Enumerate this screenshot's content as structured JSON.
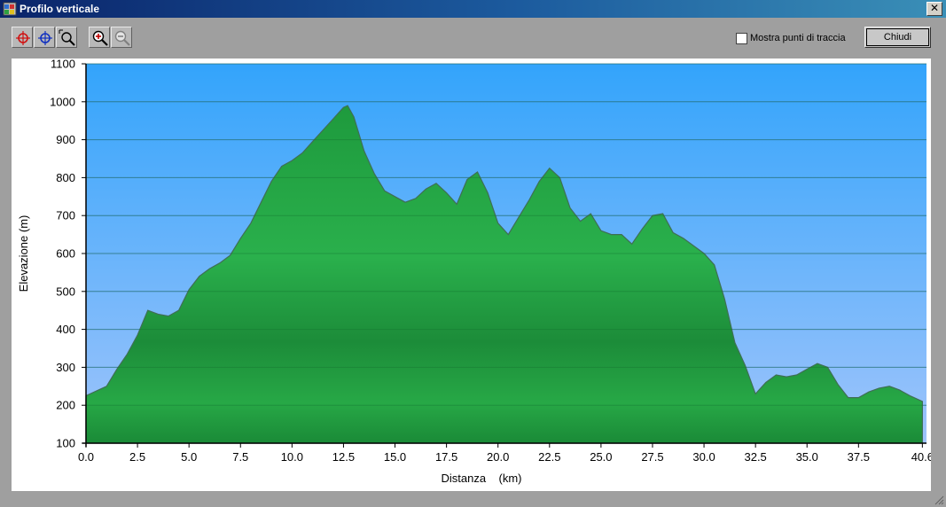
{
  "window": {
    "title": "Profilo verticale",
    "close_symbol": "✕"
  },
  "toolbar": {
    "buttons": [
      {
        "name": "add-point-red-icon"
      },
      {
        "name": "add-point-blue-icon"
      },
      {
        "name": "zoom-select-icon"
      },
      {
        "name": "zoom-in-icon"
      },
      {
        "name": "zoom-out-icon"
      }
    ],
    "show_trackpoints_label": "Mostra punti di traccia",
    "show_trackpoints_checked": false,
    "close_label": "Chiudi"
  },
  "colors": {
    "sky_top": "#33a4fb",
    "sky_bottom": "#9fc4fb",
    "terrain_mid": "#2bb34d",
    "terrain_dark": "#1a8a37",
    "terrain_outline": "#3f6f55"
  },
  "chart_data": {
    "type": "area",
    "xlabel": "Distanza    (km)",
    "ylabel": "Elevazione (m)",
    "xlim": [
      0,
      40.8
    ],
    "ylim": [
      100,
      1100
    ],
    "xticks": [
      0,
      2.5,
      5,
      7.5,
      10,
      12.5,
      15,
      17.5,
      20,
      22.5,
      25,
      27.5,
      30,
      32.5,
      35,
      37.5,
      40.6
    ],
    "xtick_labels": [
      "0.0",
      "2.5",
      "5.0",
      "7.5",
      "10.0",
      "12.5",
      "15.0",
      "17.5",
      "20.0",
      "22.5",
      "25.0",
      "27.5",
      "30.0",
      "32.5",
      "35.0",
      "37.5",
      "40.6"
    ],
    "yticks": [
      100,
      200,
      300,
      400,
      500,
      600,
      700,
      800,
      900,
      1000,
      1100
    ],
    "ytick_labels": [
      "100",
      "200",
      "300",
      "400",
      "500",
      "600",
      "700",
      "800",
      "900",
      "1000",
      "1100"
    ],
    "grid": true,
    "x": [
      0,
      1,
      1.5,
      2,
      2.5,
      3,
      3.5,
      4,
      4.5,
      5,
      5.5,
      6,
      6.5,
      7,
      7.5,
      8,
      8.5,
      9,
      9.5,
      10,
      10.5,
      11,
      11.5,
      12,
      12.5,
      12.7,
      13,
      13.5,
      14,
      14.5,
      15,
      15.5,
      16,
      16.5,
      17,
      17.5,
      18,
      18.5,
      19,
      19.5,
      20,
      20.5,
      21,
      21.5,
      22,
      22.5,
      23,
      23.5,
      24,
      24.5,
      25,
      25.5,
      26,
      26.5,
      27,
      27.5,
      28,
      28.5,
      29,
      29.5,
      30,
      30.5,
      31,
      31.5,
      32,
      32.5,
      33,
      33.5,
      34,
      34.5,
      35,
      35.5,
      36,
      36.5,
      37,
      37.5,
      38,
      38.5,
      39,
      39.5,
      40,
      40.6
    ],
    "y": [
      225,
      250,
      295,
      335,
      385,
      450,
      440,
      435,
      450,
      505,
      540,
      560,
      575,
      595,
      640,
      680,
      735,
      790,
      830,
      845,
      865,
      895,
      925,
      955,
      985,
      990,
      960,
      870,
      810,
      765,
      750,
      735,
      745,
      770,
      785,
      760,
      730,
      795,
      815,
      760,
      680,
      650,
      695,
      740,
      790,
      825,
      800,
      720,
      685,
      705,
      660,
      650,
      650,
      625,
      665,
      700,
      705,
      655,
      640,
      620,
      600,
      570,
      480,
      365,
      305,
      230,
      260,
      280,
      275,
      280,
      295,
      310,
      300,
      255,
      220,
      220,
      235,
      245,
      250,
      240,
      225,
      210
    ]
  }
}
